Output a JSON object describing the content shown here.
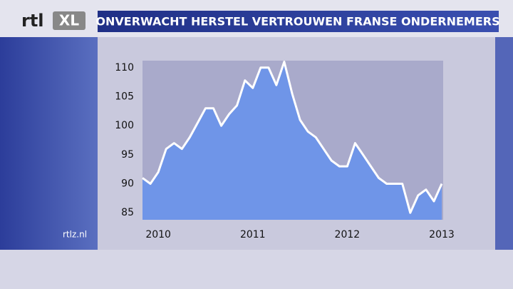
{
  "logo": "rtl",
  "logo_badge": "XL",
  "source": "rtlz.nl",
  "chart_data": {
    "type": "area",
    "title": "ONVERWACHT HERSTEL VERTROUWEN FRANSE ONDERNEMERS",
    "x": [
      2009.833,
      2009.917,
      2010.0,
      2010.083,
      2010.167,
      2010.25,
      2010.333,
      2010.417,
      2010.5,
      2010.583,
      2010.667,
      2010.75,
      2010.833,
      2010.917,
      2011.0,
      2011.083,
      2011.167,
      2011.25,
      2011.333,
      2011.417,
      2011.5,
      2011.583,
      2011.667,
      2011.75,
      2011.833,
      2011.917,
      2012.0,
      2012.083,
      2012.167,
      2012.25,
      2012.333,
      2012.417,
      2012.5,
      2012.583,
      2012.667,
      2012.75,
      2012.833,
      2012.917,
      2013.0
    ],
    "values": [
      91,
      90,
      92,
      96,
      97,
      96,
      98,
      100.5,
      103,
      103,
      100,
      102,
      103.5,
      107.8,
      106.5,
      110,
      110,
      107,
      111,
      105.5,
      101,
      99,
      98,
      96,
      94,
      93,
      93,
      97,
      95,
      93,
      91,
      90,
      90,
      90,
      85,
      88,
      89,
      87,
      90
    ],
    "color": "#6f95e8",
    "line_color": "#ffffff",
    "xlim": [
      2009.833,
      2013.0
    ],
    "xticks": [
      2010,
      2011,
      2012,
      2013
    ],
    "ylim": [
      83.8,
      111.2
    ],
    "yticks": [
      85,
      90,
      95,
      100,
      105,
      110
    ]
  }
}
